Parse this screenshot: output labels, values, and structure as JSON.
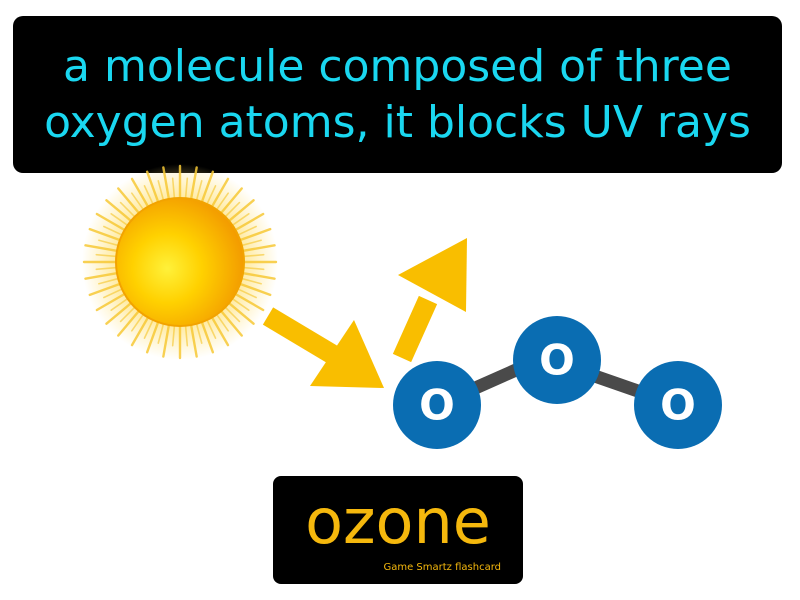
{
  "definition": {
    "line1": "a molecule composed of three",
    "line2": "oxygen atoms, it blocks UV rays"
  },
  "term": {
    "word": "ozone",
    "brand": "Game Smartz  flashcard"
  },
  "illustration": {
    "atoms": [
      {
        "symbol": "O"
      },
      {
        "symbol": "O"
      },
      {
        "symbol": "O"
      }
    ],
    "icons": [
      "sun-icon",
      "incoming-uv-arrow-icon",
      "reflected-uv-arrow-icon",
      "ozone-molecule-icon"
    ]
  },
  "colors": {
    "definition_text": "#1ad7f0",
    "term_text": "#f5b80d",
    "arrow": "#f9be00",
    "atom": "#0a6db2",
    "bond": "#4a4a4a",
    "sun_core": "#f9b000",
    "sun_rays": "#f7d24a"
  }
}
